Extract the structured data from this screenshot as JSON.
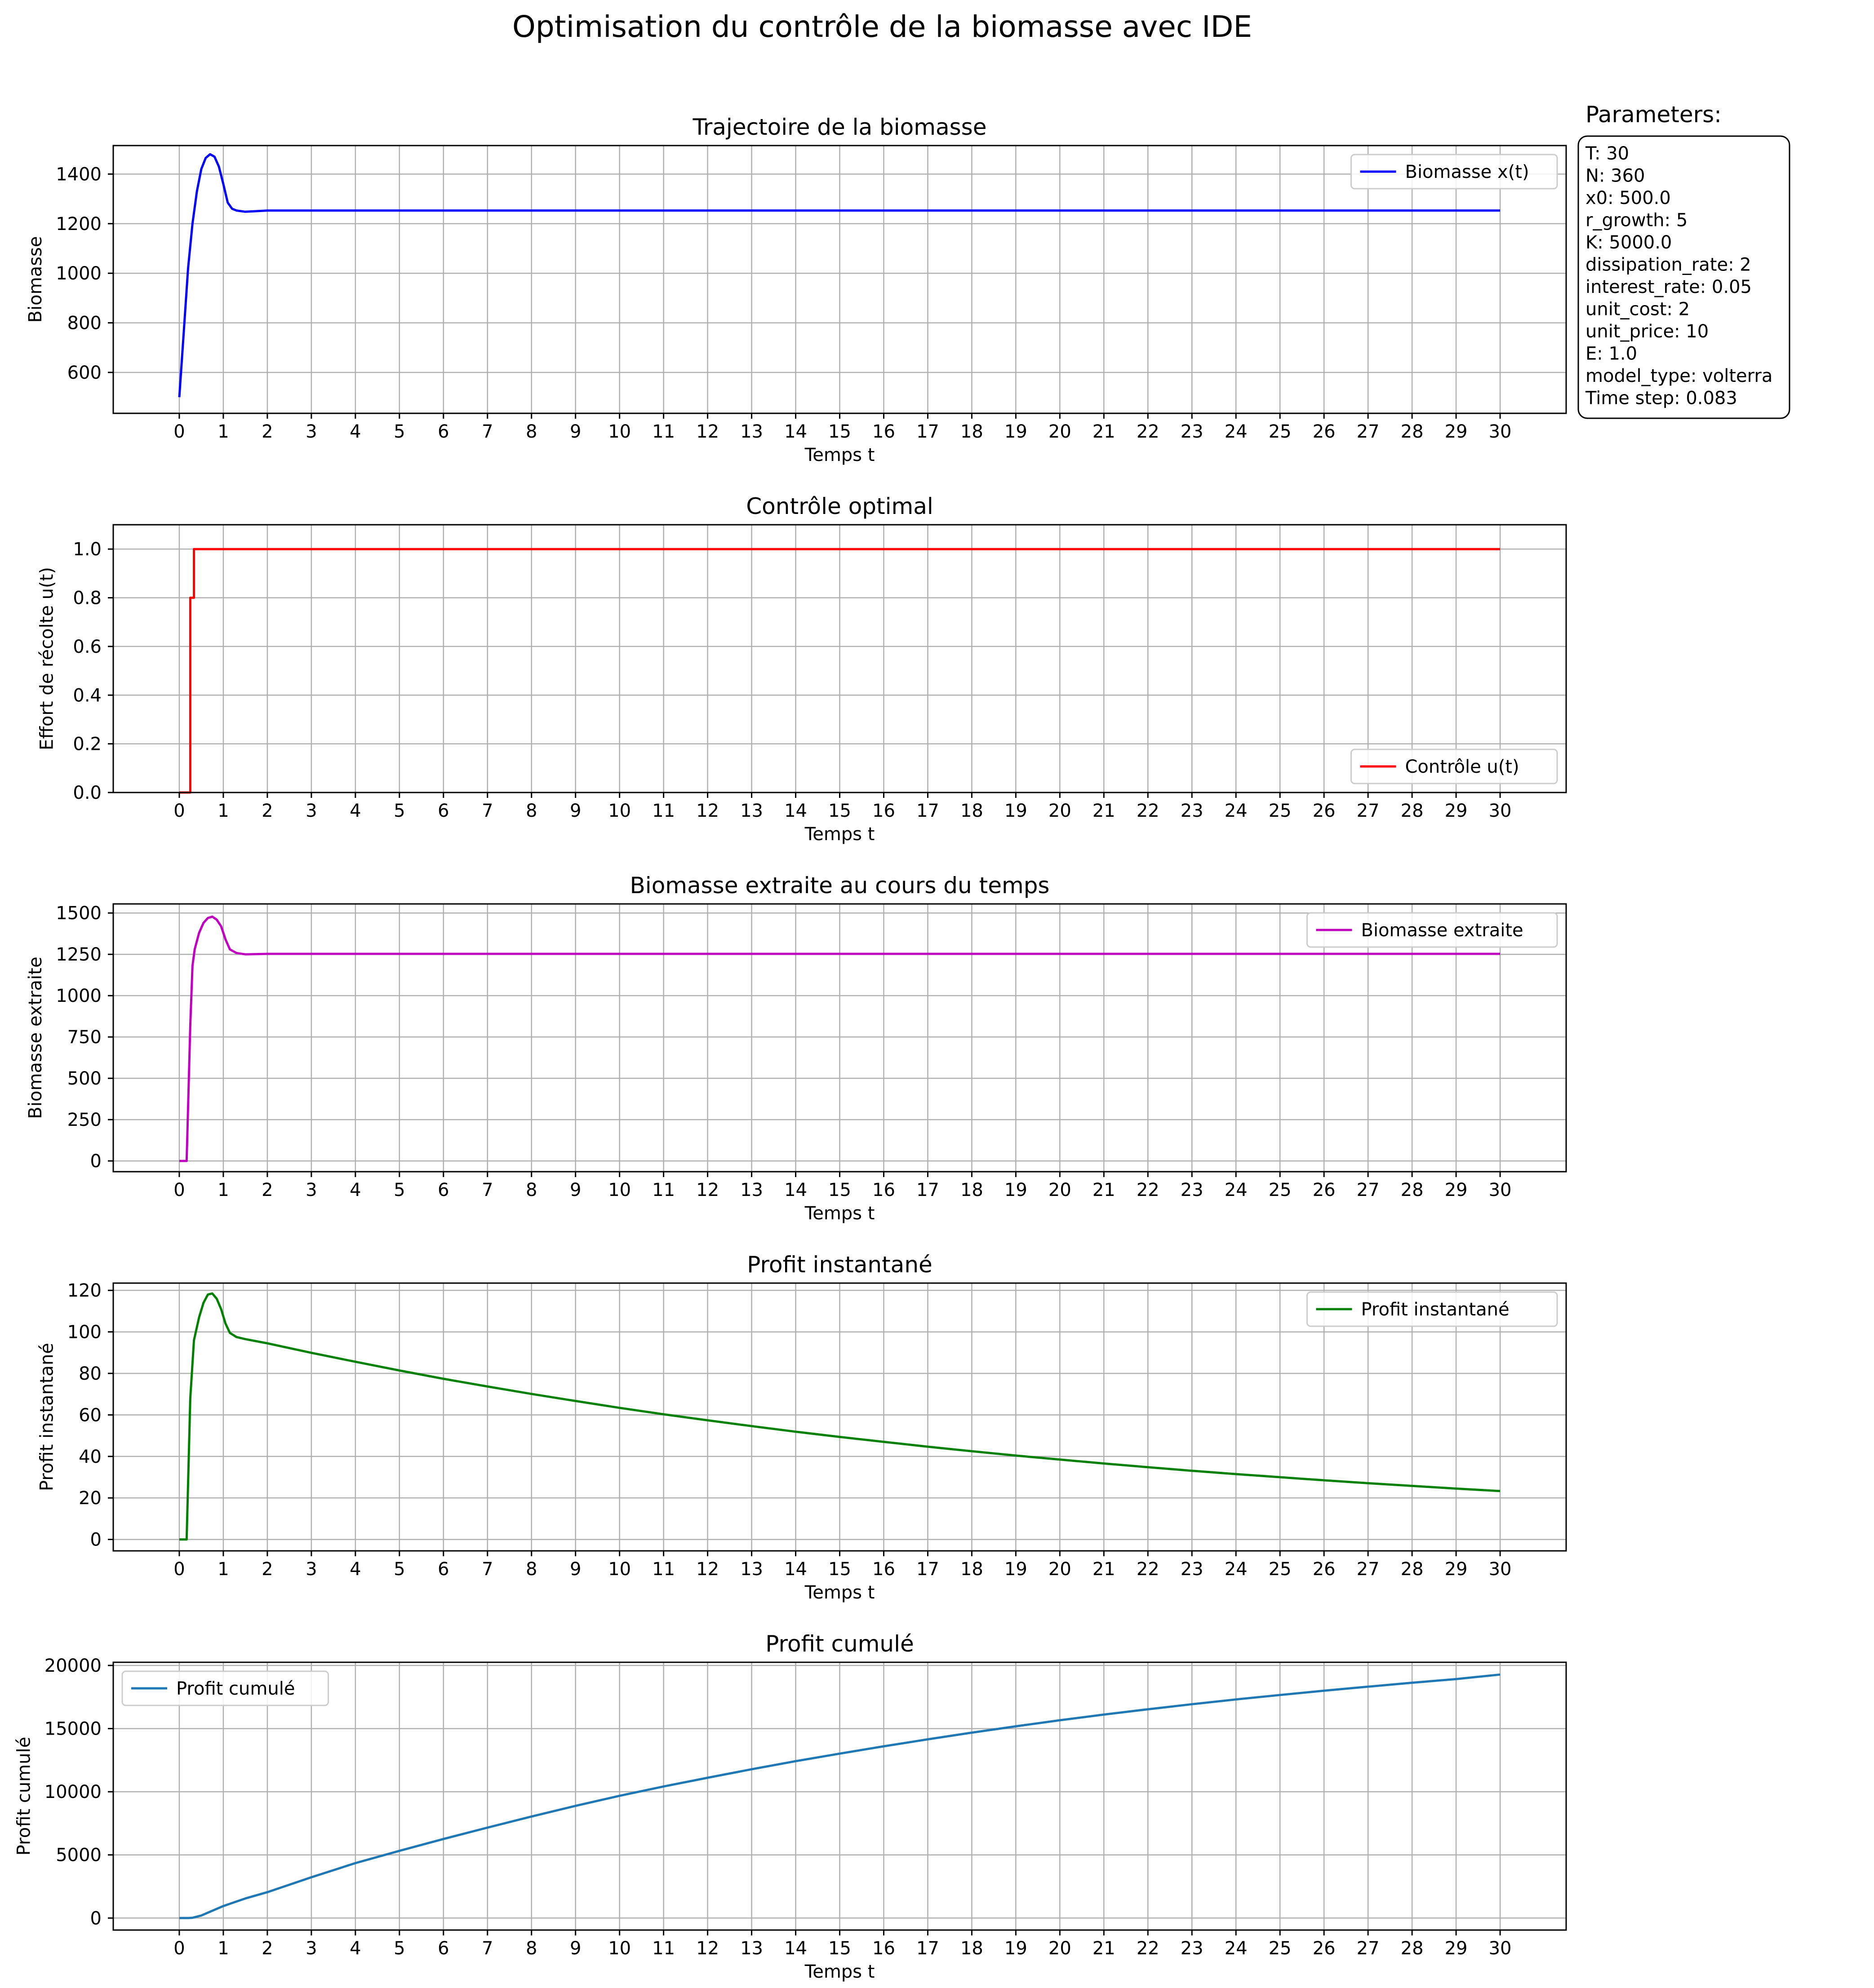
{
  "figure": {
    "title": "Optimisation du contrôle de la biomasse avec IDE"
  },
  "parameters": {
    "header": "Parameters:",
    "lines": [
      "T: 30",
      "N: 360",
      "x0: 500.0",
      "r_growth: 5",
      "K: 5000.0",
      "dissipation_rate: 2",
      "interest_rate: 0.05",
      "unit_cost: 2",
      "unit_price: 10",
      "E: 1.0",
      "model_type: volterra",
      "Time step: 0.083"
    ]
  },
  "chart_data": [
    {
      "type": "line",
      "title": "Trajectoire de la biomasse",
      "xlabel": "Temps t",
      "ylabel": "Biomasse",
      "xlim": [
        -1.5,
        31.5
      ],
      "ylim": [
        435,
        1515
      ],
      "xticks": [
        0,
        1,
        2,
        3,
        4,
        5,
        6,
        7,
        8,
        9,
        10,
        11,
        12,
        13,
        14,
        15,
        16,
        17,
        18,
        19,
        20,
        21,
        22,
        23,
        24,
        25,
        26,
        27,
        28,
        29,
        30
      ],
      "yticks": [
        600,
        800,
        1000,
        1200,
        1400
      ],
      "grid": true,
      "legend_position": "top-right",
      "series": [
        {
          "name": "Biomasse x(t)",
          "color": "#0000ff",
          "x": [
            0,
            0.1,
            0.2,
            0.3,
            0.4,
            0.5,
            0.6,
            0.7,
            0.8,
            0.9,
            1.0,
            1.1,
            1.2,
            1.3,
            1.5,
            1.7,
            2.0,
            3,
            10,
            20,
            30
          ],
          "y": [
            500,
            760,
            1020,
            1200,
            1330,
            1420,
            1465,
            1480,
            1470,
            1430,
            1360,
            1285,
            1260,
            1253,
            1248,
            1250,
            1253,
            1253,
            1253,
            1253,
            1253
          ]
        }
      ]
    },
    {
      "type": "line",
      "title": "Contrôle optimal",
      "xlabel": "Temps t",
      "ylabel": "Effort de récolte u(t)",
      "xlim": [
        -1.5,
        31.5
      ],
      "ylim": [
        0,
        1.1
      ],
      "xticks": [
        0,
        1,
        2,
        3,
        4,
        5,
        6,
        7,
        8,
        9,
        10,
        11,
        12,
        13,
        14,
        15,
        16,
        17,
        18,
        19,
        20,
        21,
        22,
        23,
        24,
        25,
        26,
        27,
        28,
        29,
        30
      ],
      "yticks": [
        0.0,
        0.2,
        0.4,
        0.6,
        0.8,
        1.0
      ],
      "grid": true,
      "legend_position": "bottom-right",
      "series": [
        {
          "name": "Contrôle u(t)",
          "color": "#ff0000",
          "x": [
            0,
            0.25,
            0.25,
            0.333,
            0.333,
            30
          ],
          "y": [
            0,
            0,
            0.8,
            0.8,
            1.0,
            1.0
          ]
        }
      ]
    },
    {
      "type": "line",
      "title": "Biomasse extraite au cours du temps",
      "xlabel": "Temps t",
      "ylabel": "Biomasse extraite",
      "xlim": [
        -1.5,
        31.5
      ],
      "ylim": [
        -65,
        1555
      ],
      "xticks": [
        0,
        1,
        2,
        3,
        4,
        5,
        6,
        7,
        8,
        9,
        10,
        11,
        12,
        13,
        14,
        15,
        16,
        17,
        18,
        19,
        20,
        21,
        22,
        23,
        24,
        25,
        26,
        27,
        28,
        29,
        30
      ],
      "yticks": [
        0,
        250,
        500,
        750,
        1000,
        1250,
        1500
      ],
      "grid": true,
      "legend_position": "top-right",
      "series": [
        {
          "name": "Biomasse extraite",
          "color": "#bf00bf",
          "x": [
            0,
            0.167,
            0.25,
            0.3,
            0.35,
            0.45,
            0.55,
            0.65,
            0.75,
            0.85,
            0.95,
            1.05,
            1.15,
            1.3,
            1.5,
            2.0,
            10,
            20,
            30
          ],
          "y": [
            0,
            0,
            820,
            1180,
            1280,
            1380,
            1440,
            1470,
            1478,
            1460,
            1420,
            1340,
            1280,
            1258,
            1250,
            1253,
            1253,
            1253,
            1253
          ]
        }
      ]
    },
    {
      "type": "line",
      "title": "Profit instantané",
      "xlabel": "Temps t",
      "ylabel": "Profit instantané",
      "xlim": [
        -1.5,
        31.5
      ],
      "ylim": [
        -5.5,
        123.5
      ],
      "xticks": [
        0,
        1,
        2,
        3,
        4,
        5,
        6,
        7,
        8,
        9,
        10,
        11,
        12,
        13,
        14,
        15,
        16,
        17,
        18,
        19,
        20,
        21,
        22,
        23,
        24,
        25,
        26,
        27,
        28,
        29,
        30
      ],
      "yticks": [
        0,
        20,
        40,
        60,
        80,
        100,
        120
      ],
      "grid": true,
      "legend_position": "top-right",
      "series": [
        {
          "name": "Profit instantané",
          "color": "#008000",
          "x": [
            0,
            0.167,
            0.25,
            0.333,
            0.45,
            0.55,
            0.65,
            0.75,
            0.85,
            0.95,
            1.05,
            1.15,
            1.3,
            1.5,
            2,
            3,
            4,
            5,
            6,
            7,
            8,
            9,
            10,
            11,
            12,
            13,
            14,
            15,
            16,
            17,
            18,
            19,
            20,
            21,
            22,
            23,
            24,
            25,
            26,
            27,
            28,
            29,
            30
          ],
          "y": [
            0,
            0,
            68,
            96,
            107,
            114,
            118,
            118.5,
            116,
            111,
            104,
            99.5,
            97.5,
            96.5,
            94.5,
            89.9,
            85.6,
            81.4,
            77.4,
            73.7,
            70.1,
            66.7,
            63.4,
            60.3,
            57.4,
            54.6,
            51.9,
            49.4,
            47.0,
            44.7,
            42.5,
            40.4,
            38.5,
            36.6,
            34.8,
            33.1,
            31.5,
            30.0,
            28.5,
            27.1,
            25.8,
            24.5,
            23.3
          ]
        }
      ]
    },
    {
      "type": "line",
      "title": "Profit cumulé",
      "xlabel": "Temps t",
      "ylabel": "Profit cumulé",
      "xlim": [
        -1.5,
        31.5
      ],
      "ylim": [
        -950,
        20250
      ],
      "xticks": [
        0,
        1,
        2,
        3,
        4,
        5,
        6,
        7,
        8,
        9,
        10,
        11,
        12,
        13,
        14,
        15,
        16,
        17,
        18,
        19,
        20,
        21,
        22,
        23,
        24,
        25,
        26,
        27,
        28,
        29,
        30
      ],
      "yticks": [
        0,
        5000,
        10000,
        15000,
        20000
      ],
      "grid": true,
      "legend_position": "top-left",
      "series": [
        {
          "name": "Profit cumulé",
          "color": "#1f77b4",
          "x": [
            0,
            0.2,
            0.3,
            0.5,
            0.7,
            1,
            1.5,
            2,
            3,
            4,
            5,
            6,
            7,
            8,
            9,
            10,
            11,
            12,
            13,
            14,
            15,
            16,
            17,
            18,
            19,
            20,
            21,
            22,
            23,
            24,
            25,
            26,
            27,
            28,
            29,
            30
          ],
          "y": [
            0,
            0,
            20,
            200,
            500,
            950,
            1550,
            2050,
            3230,
            4350,
            5320,
            6260,
            7160,
            8040,
            8880,
            9680,
            10420,
            11110,
            11780,
            12420,
            13020,
            13600,
            14150,
            14680,
            15180,
            15660,
            16110,
            16530,
            16930,
            17310,
            17660,
            18000,
            18320,
            18630,
            18920,
            19280
          ]
        }
      ]
    }
  ]
}
